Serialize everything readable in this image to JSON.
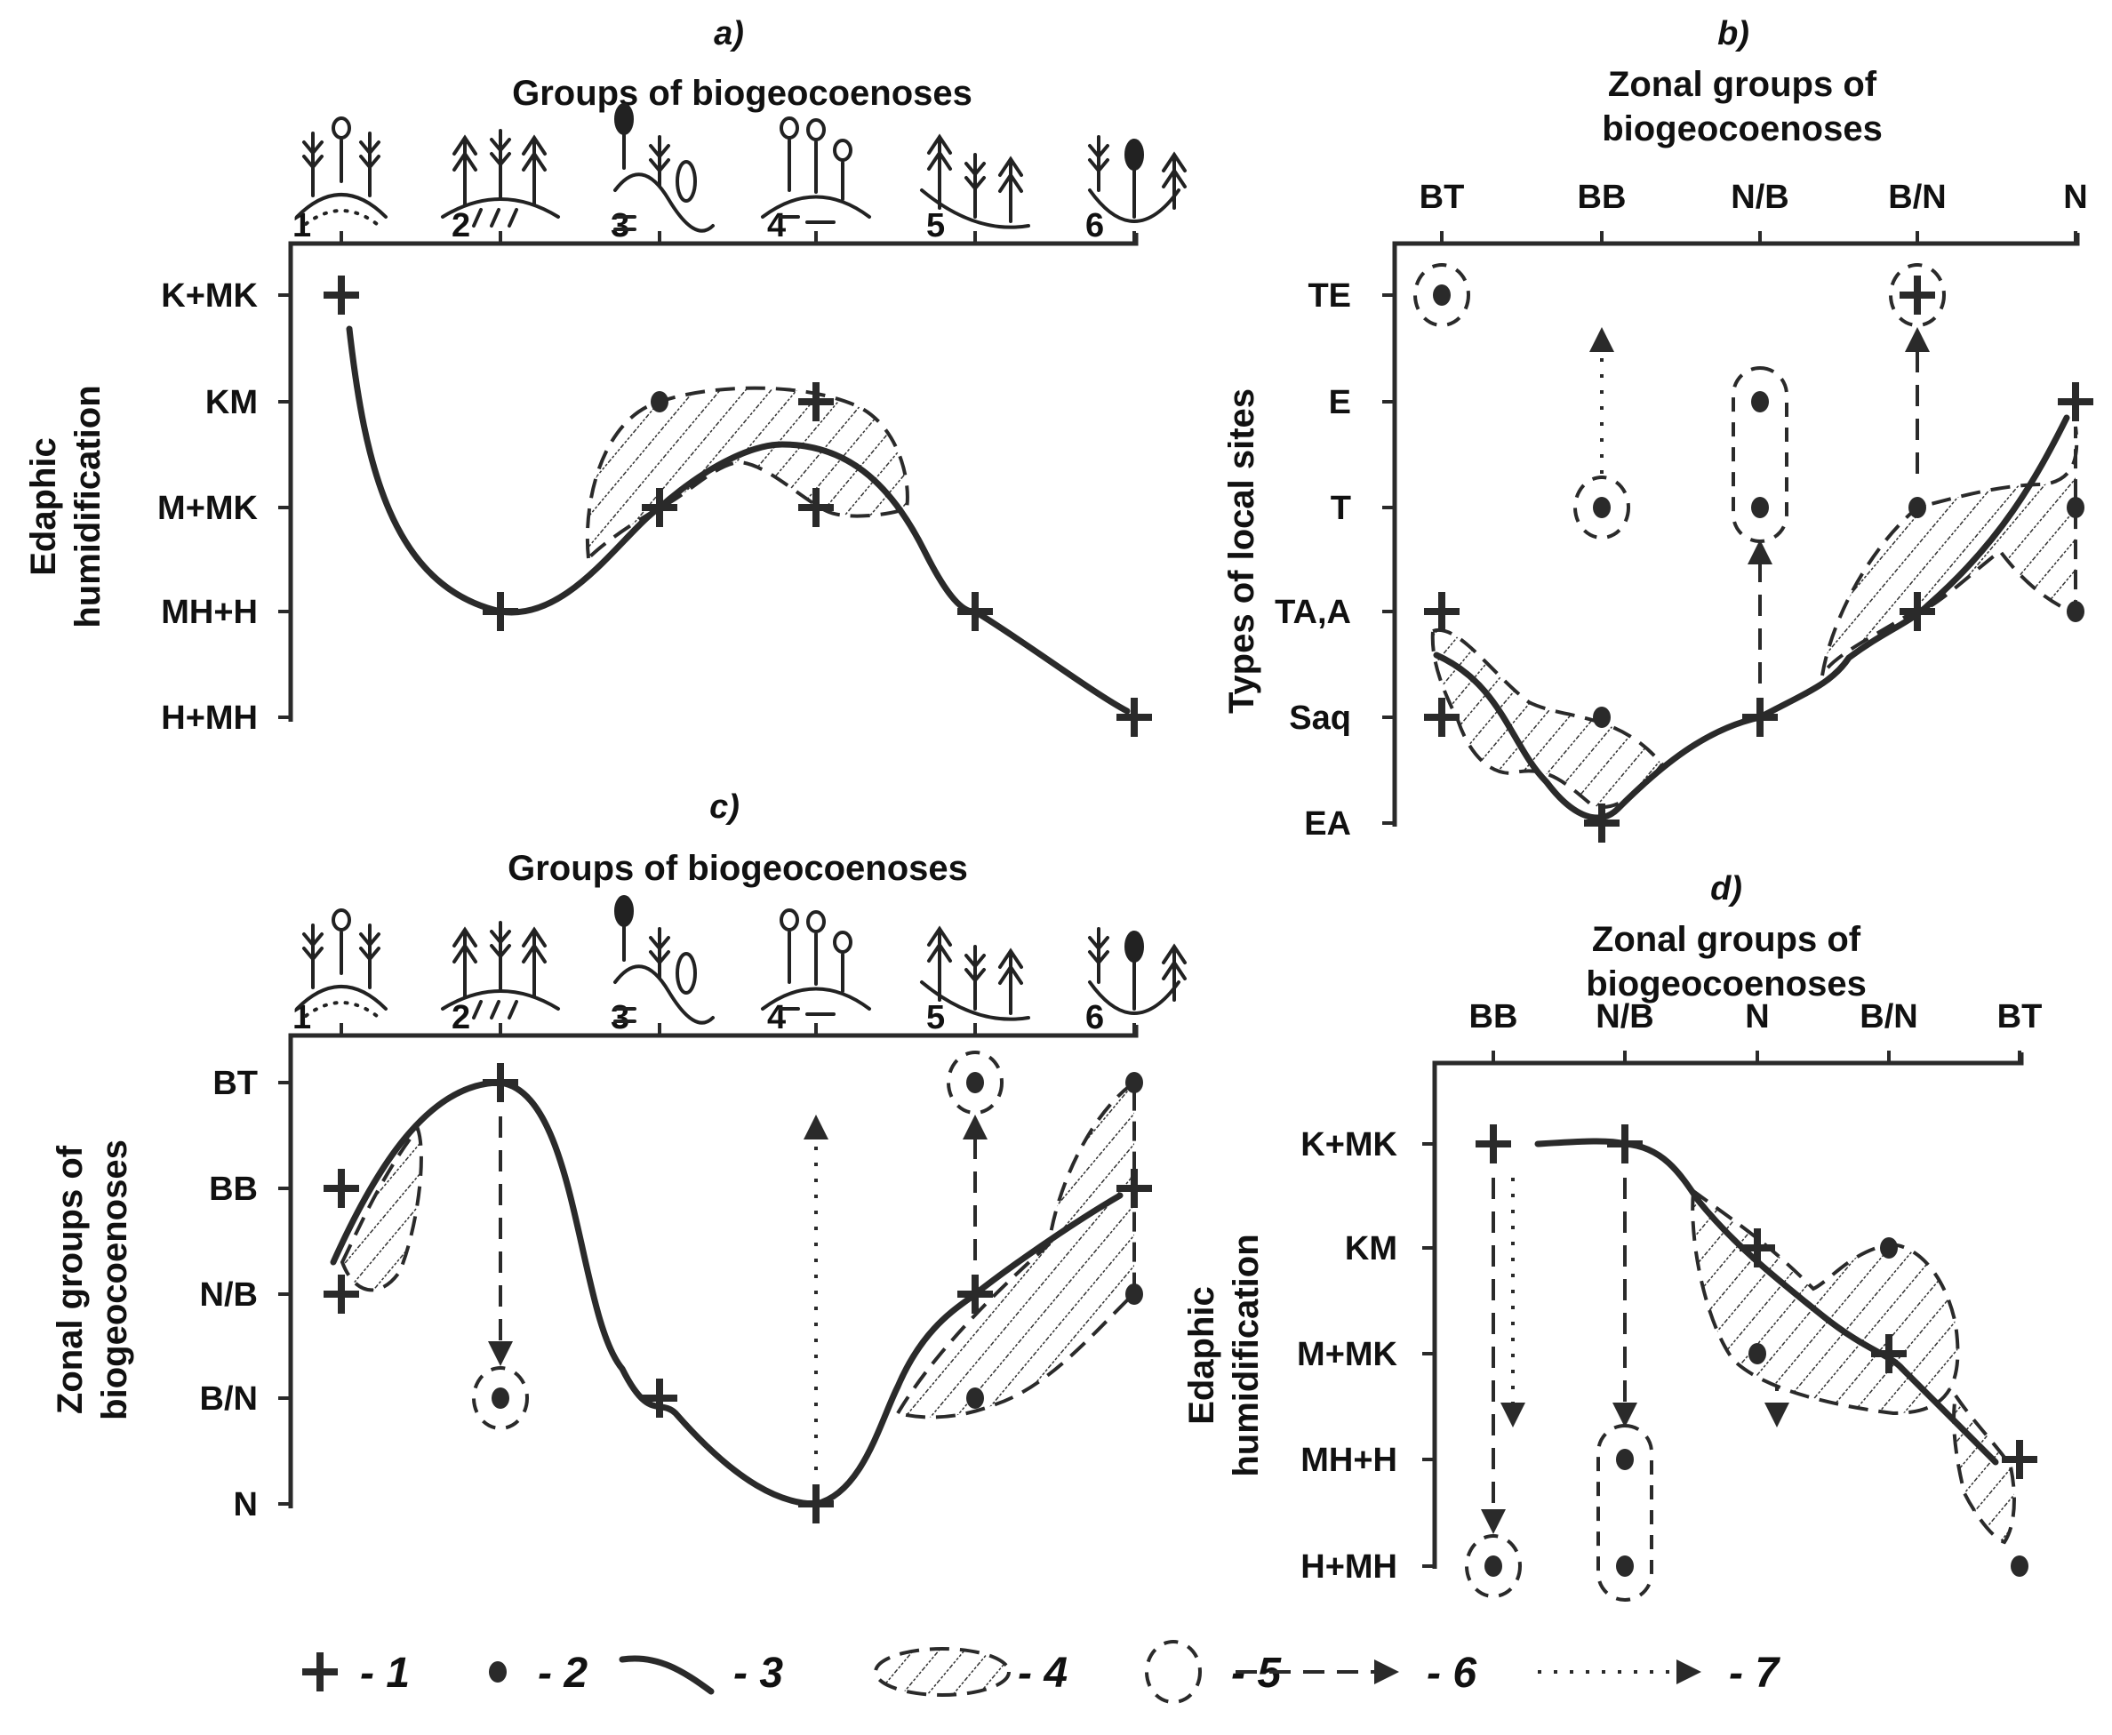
{
  "figure": {
    "legend": [
      {
        "symbol": "plus-marker",
        "label": "- 1"
      },
      {
        "symbol": "dot-marker",
        "label": "- 2"
      },
      {
        "symbol": "solid-curve",
        "label": "- 3"
      },
      {
        "symbol": "hatched-zone",
        "label": "- 4"
      },
      {
        "symbol": "dashed-ring",
        "label": "- 5"
      },
      {
        "symbol": "dashed-arrow",
        "label": "- 6"
      },
      {
        "symbol": "dotted-arrow",
        "label": "- 7"
      }
    ]
  },
  "panels": {
    "a": {
      "label": "a)",
      "title": "Groups of biogeocoenoses",
      "ylabel_line1": "Edaphic",
      "ylabel_line2": "humidification",
      "xticks": [
        "1",
        "2",
        "3",
        "4",
        "5",
        "6"
      ],
      "yticks": [
        "K+MK",
        "KM",
        "M+MK",
        "MH+H",
        "H+MH"
      ]
    },
    "b": {
      "label": "b)",
      "title_line1": "Zonal groups of",
      "title_line2": "biogeocoenoses",
      "ylabel": "Types of local sites",
      "xticks": [
        "BT",
        "BB",
        "N/B",
        "B/N",
        "N"
      ],
      "yticks": [
        "TE",
        "E",
        "T",
        "TA,A",
        "Saq",
        "EA"
      ]
    },
    "c": {
      "label": "c)",
      "title": "Groups of biogeocoenoses",
      "ylabel_line1": "Zonal groups of",
      "ylabel_line2": "biogeocoenoses",
      "xticks": [
        "1",
        "2",
        "3",
        "4",
        "5",
        "6"
      ],
      "yticks": [
        "BT",
        "BB",
        "N/B",
        "B/N",
        "N"
      ]
    },
    "d": {
      "label": "d)",
      "title_line1": "Zonal groups of",
      "title_line2": "biogeocoenoses",
      "ylabel_line1": "Edaphic",
      "ylabel_line2": "humidification",
      "xticks": [
        "BB",
        "N/B",
        "N",
        "B/N",
        "BT"
      ],
      "yticks": [
        "K+MK",
        "KM",
        "M+MK",
        "MH+H",
        "H+MH"
      ]
    }
  },
  "chart_data": [
    {
      "type": "scatter",
      "panel": "a",
      "x_categories": [
        "1",
        "2",
        "3",
        "4",
        "5",
        "6"
      ],
      "y_categories": [
        "K+MK",
        "KM",
        "M+MK",
        "MH+H",
        "H+MH"
      ],
      "plus_points": [
        [
          "1",
          "K+MK"
        ],
        [
          "2",
          "MH+H"
        ],
        [
          "3",
          "M+MK"
        ],
        [
          "4",
          "KM"
        ],
        [
          "4",
          "M+MK"
        ],
        [
          "5",
          "MH+H"
        ],
        [
          "6",
          "H+MH"
        ]
      ],
      "dot_points": [
        [
          "3",
          "KM"
        ]
      ],
      "curve_points": [
        [
          "1",
          "K+MK"
        ],
        [
          "2",
          "MH+H"
        ],
        [
          "3",
          "M+MK"
        ],
        [
          "4",
          "M+MK"
        ],
        [
          "5",
          "MH+H"
        ],
        [
          "6",
          "H+MH"
        ]
      ]
    },
    {
      "type": "scatter",
      "panel": "b",
      "x_categories": [
        "BT",
        "BB",
        "N/B",
        "B/N",
        "N"
      ],
      "y_categories": [
        "TE",
        "E",
        "T",
        "TA,A",
        "Saq",
        "EA"
      ],
      "plus_points": [
        [
          "BT",
          "TA,A"
        ],
        [
          "BT",
          "Saq"
        ],
        [
          "BB",
          "EA"
        ],
        [
          "N/B",
          "Saq"
        ],
        [
          "B/N",
          "TA,A"
        ],
        [
          "B/N",
          "TE"
        ],
        [
          "N",
          "E"
        ]
      ],
      "dot_points": [
        [
          "BT",
          "TE"
        ],
        [
          "BB",
          "T"
        ],
        [
          "BB",
          "Saq"
        ],
        [
          "N/B",
          "E"
        ],
        [
          "N/B",
          "T"
        ],
        [
          "B/N",
          "T"
        ],
        [
          "N",
          "T"
        ],
        [
          "N",
          "TA,A"
        ]
      ],
      "arrows": [
        {
          "style": "dotted",
          "from": [
            "BB",
            "T"
          ],
          "to": [
            "BB",
            "TE"
          ]
        },
        {
          "style": "dashed",
          "from": [
            "N/B",
            "Saq"
          ],
          "to": [
            "N/B",
            "T"
          ]
        },
        {
          "style": "dashed",
          "from": [
            "B/N",
            "T"
          ],
          "to": [
            "B/N",
            "TE"
          ]
        }
      ]
    },
    {
      "type": "scatter",
      "panel": "c",
      "x_categories": [
        "1",
        "2",
        "3",
        "4",
        "5",
        "6"
      ],
      "y_categories": [
        "BT",
        "BB",
        "N/B",
        "B/N",
        "N"
      ],
      "plus_points": [
        [
          "1",
          "BB"
        ],
        [
          "1",
          "N/B"
        ],
        [
          "2",
          "BT"
        ],
        [
          "3",
          "B/N"
        ],
        [
          "4",
          "N"
        ],
        [
          "5",
          "N/B"
        ],
        [
          "6",
          "BB"
        ]
      ],
      "dot_points": [
        [
          "2",
          "B/N"
        ],
        [
          "5",
          "BT"
        ],
        [
          "5",
          "B/N"
        ],
        [
          "6",
          "BT"
        ],
        [
          "6",
          "N/B"
        ]
      ],
      "arrows": [
        {
          "style": "dashed",
          "from": [
            "2",
            "BT"
          ],
          "to": [
            "2",
            "B/N"
          ]
        },
        {
          "style": "dotted",
          "from": [
            "4",
            "N"
          ],
          "to": [
            "4",
            "BT"
          ]
        },
        {
          "style": "dashed",
          "from": [
            "5",
            "N/B"
          ],
          "to": [
            "5",
            "BT"
          ]
        }
      ]
    },
    {
      "type": "scatter",
      "panel": "d",
      "x_categories": [
        "BB",
        "N/B",
        "N",
        "B/N",
        "BT"
      ],
      "y_categories": [
        "K+MK",
        "KM",
        "M+MK",
        "MH+H",
        "H+MH"
      ],
      "plus_points": [
        [
          "BB",
          "K+MK"
        ],
        [
          "N/B",
          "K+MK"
        ],
        [
          "N",
          "KM"
        ],
        [
          "B/N",
          "M+MK"
        ],
        [
          "BT",
          "MH+H"
        ]
      ],
      "dot_points": [
        [
          "BB",
          "H+MH"
        ],
        [
          "N/B",
          "MH+H"
        ],
        [
          "N/B",
          "H+MH"
        ],
        [
          "N",
          "M+MK"
        ],
        [
          "B/N",
          "KM"
        ],
        [
          "BT",
          "H+MH"
        ]
      ],
      "arrows": [
        {
          "style": "dashed",
          "from": [
            "BB",
            "K+MK"
          ],
          "to": [
            "BB",
            "H+MH"
          ]
        },
        {
          "style": "dotted",
          "from": [
            "BB",
            "K+MK"
          ],
          "to": [
            "BB",
            "MH+H"
          ]
        },
        {
          "style": "dashed",
          "from": [
            "N/B",
            "K+MK"
          ],
          "to": [
            "N/B",
            "MH+H"
          ]
        },
        {
          "style": "dotted",
          "from": [
            "N",
            "M+MK"
          ],
          "to": [
            "N",
            "MH+H"
          ]
        }
      ]
    }
  ]
}
